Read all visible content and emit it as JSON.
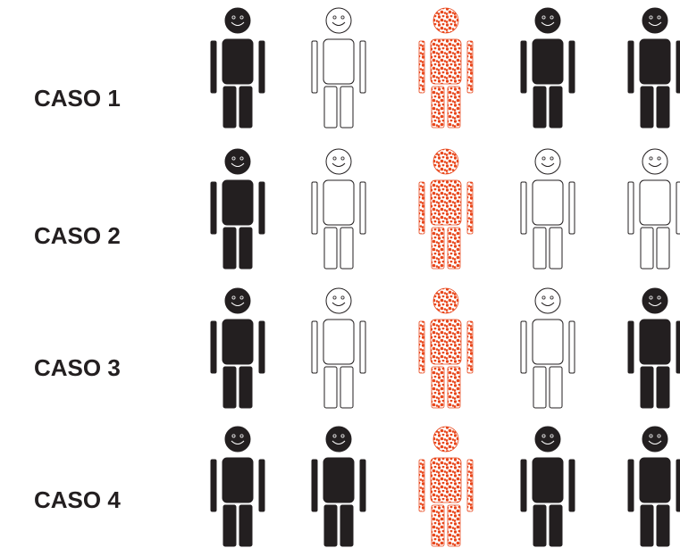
{
  "cases": [
    {
      "label": "CASO 1",
      "figures": [
        "filled",
        "outline",
        "dotted",
        "filled",
        "filled"
      ]
    },
    {
      "label": "CASO 2",
      "figures": [
        "filled",
        "outline",
        "dotted",
        "outline",
        "outline"
      ]
    },
    {
      "label": "CASO 3",
      "figures": [
        "filled",
        "outline",
        "dotted",
        "outline",
        "filled"
      ]
    },
    {
      "label": "CASO 4",
      "figures": [
        "filled",
        "filled",
        "dotted",
        "filled",
        "filled"
      ]
    }
  ],
  "colors": {
    "filled": "#231f20",
    "outline_stroke": "#231f20",
    "dotted_dots": "#e8471c",
    "dotted_stroke": "#e8471c",
    "label": "#231f20"
  }
}
